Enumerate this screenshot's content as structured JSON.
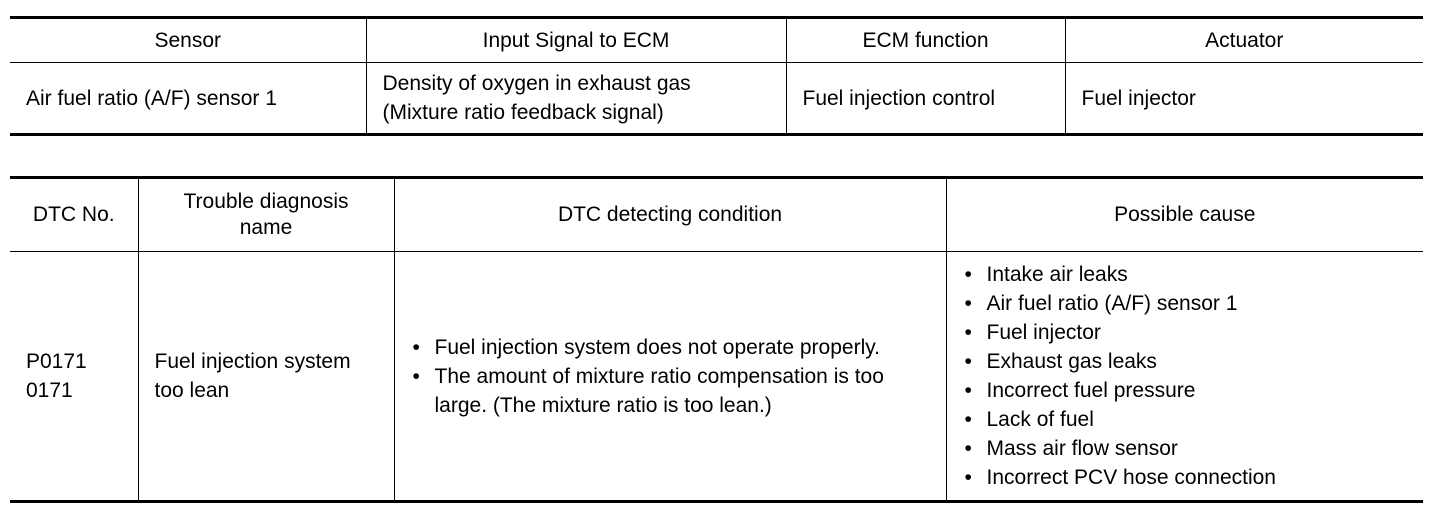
{
  "signals_table": {
    "headers": [
      "Sensor",
      "Input Signal to ECM",
      "ECM function",
      "Actuator"
    ],
    "row": {
      "sensor": "Air fuel ratio (A/F) sensor 1",
      "input_signal_line1": "Density of oxygen in exhaust gas",
      "input_signal_line2": "(Mixture ratio feedback signal)",
      "ecm_function": "Fuel injection control",
      "actuator": "Fuel injector"
    }
  },
  "dtc_table": {
    "headers": {
      "dtc_no": "DTC No.",
      "trouble_name_line1": "Trouble diagnosis",
      "trouble_name_line2": "name",
      "detecting_condition": "DTC detecting condition",
      "possible_cause": "Possible cause"
    },
    "row": {
      "dtc_line1": "P0171",
      "dtc_line2": "0171",
      "name_line1": "Fuel injection system",
      "name_line2": "too lean",
      "conditions": [
        "Fuel injection system does not operate properly.",
        "The amount of mixture ratio compensation is too large. (The mixture ratio is too lean.)"
      ],
      "causes": [
        "Intake air leaks",
        "Air fuel ratio (A/F) sensor 1",
        "Fuel injector",
        "Exhaust gas leaks",
        "Incorrect fuel pressure",
        "Lack of fuel",
        "Mass air flow sensor",
        "Incorrect PCV hose connection"
      ]
    }
  }
}
